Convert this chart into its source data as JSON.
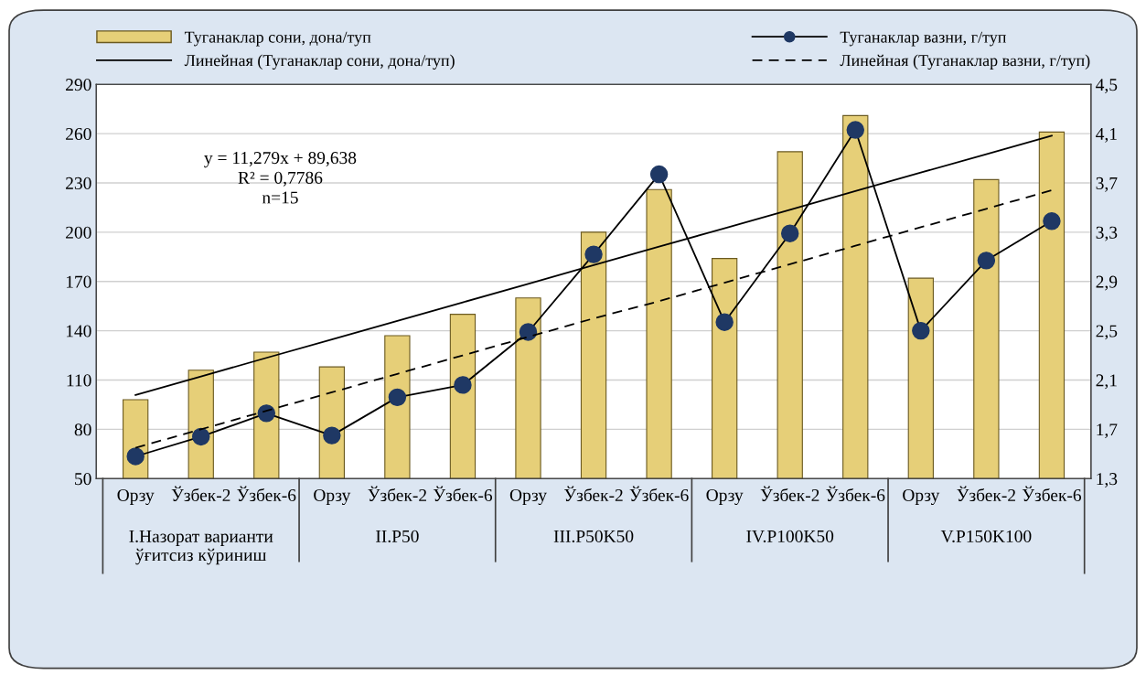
{
  "chart_data": {
    "type": "bar",
    "categories": [
      "Орзу",
      "Ўзбек-2",
      "Ўзбек-6",
      "Орзу",
      "Ўзбек-2",
      "Ўзбек-6",
      "Орзу",
      "Ўзбек-2",
      "Ўзбек-6",
      "Орзу",
      "Ўзбек-2",
      "Ўзбек-6",
      "Орзу",
      "Ўзбек-2",
      "Ўзбек-6"
    ],
    "series": [
      {
        "name": "Туганаклар сони, дона/туп",
        "color": "#e6cf78",
        "values": [
          98,
          116,
          127,
          118,
          137,
          150,
          160,
          200,
          226,
          184,
          249,
          271,
          172,
          232,
          261
        ]
      },
      {
        "name": "Туганаклар вазни, г/туп",
        "color": "#1f3864",
        "type": "line",
        "axis": "y2",
        "marker": "circle",
        "line_style": "solid",
        "values": [
          1.48,
          1.64,
          1.83,
          1.65,
          1.96,
          2.06,
          2.49,
          3.12,
          3.77,
          2.57,
          3.29,
          4.13,
          2.5,
          3.07,
          3.39
        ]
      },
      {
        "name": "Линейная (Туганаклар сони, дона/туп)",
        "color": "#000000",
        "type": "line",
        "marker": "none",
        "line_style": "solid",
        "values": [
          100.9,
          112.2,
          123.5,
          134.7,
          146.0,
          157.3,
          168.6,
          179.9,
          191.2,
          202.4,
          213.7,
          225.0,
          236.3,
          247.5,
          258.8
        ]
      },
      {
        "name": "Линейная (Туганаклар вазни, г/туп)",
        "color": "#000000",
        "type": "line",
        "axis": "y2",
        "marker": "none",
        "line_style": "dashed",
        "values": [
          1.55,
          1.7,
          1.85,
          2.0,
          2.15,
          2.3,
          2.45,
          2.6,
          2.74,
          2.89,
          3.04,
          3.19,
          3.34,
          3.49,
          3.64
        ]
      }
    ],
    "ylim": [
      50,
      290
    ],
    "yticks": [
      50,
      80,
      110,
      140,
      170,
      200,
      230,
      260,
      290
    ],
    "y2lim": [
      1.3,
      4.5
    ],
    "y2ticks": [
      {
        "value": 1.3,
        "label": "1,3"
      },
      {
        "value": 1.7,
        "label": "1,7"
      },
      {
        "value": 2.1,
        "label": "2,1"
      },
      {
        "value": 2.5,
        "label": "2,5"
      },
      {
        "value": 2.9,
        "label": "2,9"
      },
      {
        "value": 3.3,
        "label": "3,3"
      },
      {
        "value": 3.7,
        "label": "3,7"
      },
      {
        "value": 4.1,
        "label": "4,1"
      },
      {
        "value": 4.5,
        "label": "4,5"
      }
    ],
    "annotations": [
      "y = 11,279x + 89,638\nR² = 0,7786\nn=15",
      "I.Назорат варианти\nўғитсиз кўриниш",
      "II.P50",
      "III.P50K50",
      "IV.P100K50",
      "V.P150K100"
    ],
    "grid": "y",
    "legend": "top"
  }
}
